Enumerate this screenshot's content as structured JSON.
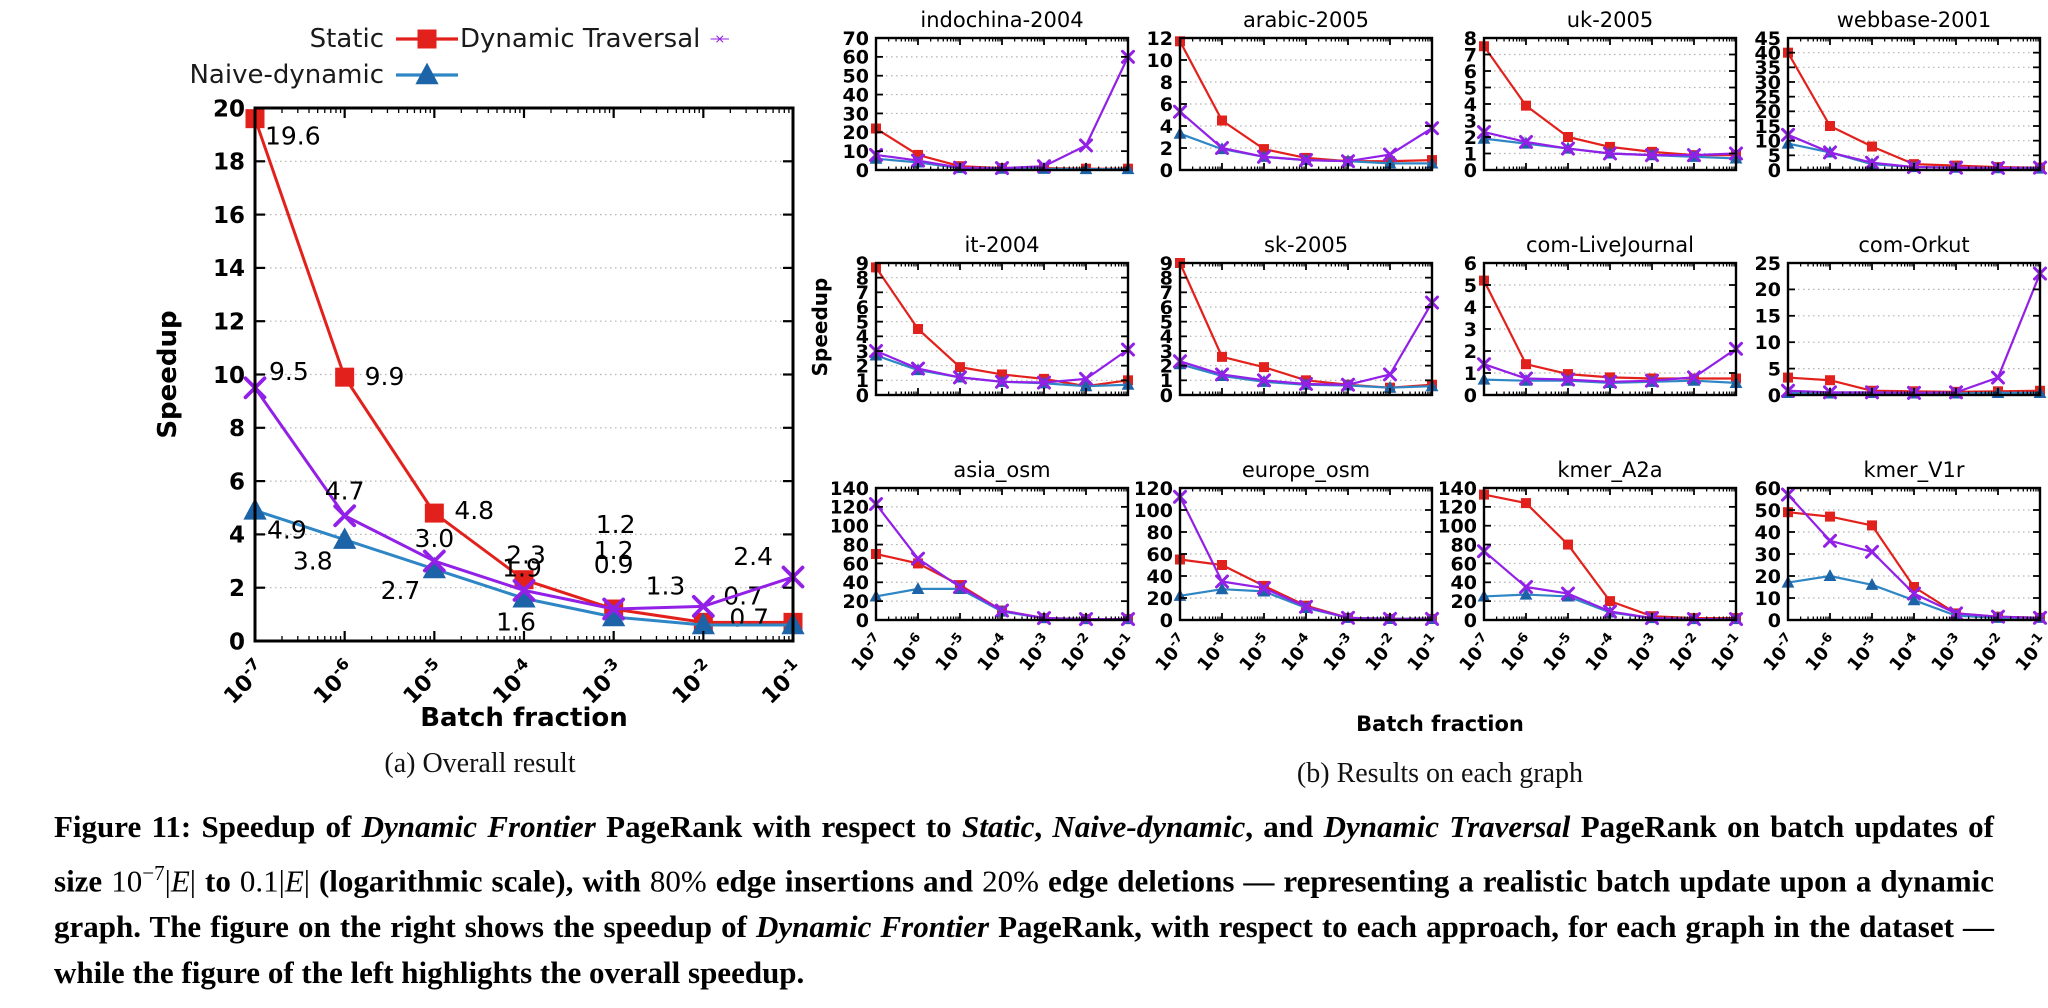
{
  "colors": {
    "grid": "#b3b3b3",
    "axis": "#000000"
  },
  "legend": {
    "items": [
      {
        "id": "static",
        "label": "Static",
        "color": "#e3211c",
        "marker": "square"
      },
      {
        "id": "naive",
        "label": "Naive-dynamic",
        "color": "#2f86c5",
        "marker_color": "#1d63a8",
        "marker": "triangle"
      },
      {
        "id": "traversal",
        "label": "Dynamic Traversal",
        "color": "#9320e6",
        "marker": "x"
      }
    ]
  },
  "chart_common": {
    "categories": [
      "10^-7",
      "10^-6",
      "10^-5",
      "10^-4",
      "10^-3",
      "10^-2",
      "10^-1"
    ],
    "xlabel": "Batch fraction",
    "ylabel": "Speedup"
  },
  "subcaptions": {
    "a": "(a) Overall result",
    "b": "(b) Results on each graph"
  },
  "caption": {
    "segments": [
      {
        "t": "Figure 11: Speedup of "
      },
      {
        "t": "Dynamic Frontier",
        "i": 1
      },
      {
        "t": " PageRank with respect to "
      },
      {
        "t": "Static",
        "i": 1
      },
      {
        "t": ", "
      },
      {
        "t": "Naive-dynamic",
        "i": 1
      },
      {
        "t": ", and "
      },
      {
        "t": "Dynamic Traversal",
        "i": 1
      },
      {
        "t": " PageRank on batch updates of size "
      },
      {
        "t": "10",
        "m": 1
      },
      {
        "t": "−7",
        "m": 1,
        "sup": 1
      },
      {
        "t": "|",
        "m": 1
      },
      {
        "t": "E",
        "m": 1,
        "i": 1
      },
      {
        "t": "|",
        "m": 1
      },
      {
        "t": " to "
      },
      {
        "t": "0.1|",
        "m": 1
      },
      {
        "t": "E",
        "m": 1,
        "i": 1
      },
      {
        "t": "|",
        "m": 1
      },
      {
        "t": " (logarithmic scale), with "
      },
      {
        "t": "80%",
        "m": 1
      },
      {
        "t": " edge insertions and "
      },
      {
        "t": "20%",
        "m": 1
      },
      {
        "t": " edge deletions — representing a realistic batch update upon a dynamic graph. The figure on the right shows the speedup of "
      },
      {
        "t": "Dynamic Frontier",
        "i": 1
      },
      {
        "t": " PageRank, with respect to each approach, for each graph in the dataset — while the figure of the left highlights the overall speedup."
      }
    ]
  },
  "chart_data": [
    {
      "type": "line",
      "id": "overall",
      "title": "",
      "categories": [
        "10^-7",
        "10^-6",
        "10^-5",
        "10^-4",
        "10^-3",
        "10^-2",
        "10^-1"
      ],
      "xlabel": "Batch fraction",
      "ylabel": "Speedup",
      "ylim": [
        0,
        20
      ],
      "ytick_step": 2,
      "grid": true,
      "legend_position": "top",
      "series": [
        {
          "name": "Static",
          "values": [
            19.6,
            9.9,
            4.8,
            2.3,
            1.2,
            0.7,
            0.7
          ],
          "point_labels": [
            {
              "t": "19.6",
              "dx": 10,
              "dy": 26
            },
            {
              "t": "9.9",
              "dx": 20,
              "dy": 8
            },
            {
              "t": "4.8",
              "dx": 20,
              "dy": 6
            },
            {
              "t": "2.3",
              "dx": 2,
              "dy": -16
            },
            {
              "t": "1.2",
              "dx": 2,
              "dy": -76
            },
            {
              "t": "0.7",
              "dx": 26,
              "dy": 4
            },
            {
              "t": "0.7",
              "dx": -30,
              "dy": -18
            }
          ]
        },
        {
          "name": "Naive-dynamic",
          "values": [
            4.9,
            3.8,
            2.7,
            1.6,
            0.9,
            0.6,
            0.6
          ],
          "point_labels": [
            {
              "t": "4.9",
              "dx": 12,
              "dy": 28
            },
            {
              "t": "3.8",
              "dx": -12,
              "dy": 30
            },
            {
              "t": "2.7",
              "dx": -14,
              "dy": 30
            },
            {
              "t": "1.6",
              "dx": -8,
              "dy": 32
            },
            {
              "t": "0.9",
              "dx": 0,
              "dy": -44
            },
            null,
            null
          ]
        },
        {
          "name": "Dynamic Traversal",
          "values": [
            9.5,
            4.7,
            3.0,
            1.9,
            1.2,
            1.3,
            2.4
          ],
          "point_labels": [
            {
              "t": "9.5",
              "dx": 14,
              "dy": -8
            },
            {
              "t": "4.7",
              "dx": 0,
              "dy": -16
            },
            {
              "t": "3.0",
              "dx": 0,
              "dy": -14
            },
            {
              "t": "1.9",
              "dx": -2,
              "dy": -14
            },
            {
              "t": "1.2",
              "dx": 0,
              "dy": -50
            },
            {
              "t": "1.3",
              "dx": -18,
              "dy": -12
            },
            {
              "t": "2.4",
              "dx": -20,
              "dy": -12
            }
          ]
        }
      ]
    },
    {
      "type": "line",
      "title": "indochina-2004",
      "ylim": [
        0,
        70
      ],
      "ytick_step": 10,
      "series": [
        {
          "name": "Static",
          "values": [
            22,
            8,
            2,
            1,
            1,
            0.7,
            0.7
          ]
        },
        {
          "name": "Naive-dynamic",
          "values": [
            6,
            4,
            1,
            0.7,
            0.6,
            0.5,
            0.5
          ]
        },
        {
          "name": "Dynamic Traversal",
          "values": [
            8,
            5,
            1.2,
            1,
            2,
            13,
            60
          ]
        }
      ]
    },
    {
      "type": "line",
      "title": "arabic-2005",
      "ylim": [
        0,
        12
      ],
      "ytick_step": 2,
      "series": [
        {
          "name": "Static",
          "values": [
            11.7,
            4.5,
            1.9,
            1.1,
            0.8,
            0.8,
            0.9
          ]
        },
        {
          "name": "Naive-dynamic",
          "values": [
            3.3,
            1.9,
            1.2,
            0.9,
            0.8,
            0.6,
            0.6
          ]
        },
        {
          "name": "Dynamic Traversal",
          "values": [
            5.3,
            2.0,
            1.2,
            0.9,
            0.8,
            1.4,
            3.8
          ]
        }
      ]
    },
    {
      "type": "line",
      "title": "uk-2005",
      "ylim": [
        0,
        8
      ],
      "ytick_step": 1,
      "series": [
        {
          "name": "Static",
          "values": [
            7.5,
            3.9,
            2.0,
            1.4,
            1.1,
            0.9,
            0.9
          ]
        },
        {
          "name": "Naive-dynamic",
          "values": [
            1.9,
            1.6,
            1.3,
            1.0,
            0.9,
            0.8,
            0.7
          ]
        },
        {
          "name": "Dynamic Traversal",
          "values": [
            2.3,
            1.7,
            1.3,
            1.0,
            0.9,
            0.9,
            1.0
          ]
        }
      ]
    },
    {
      "type": "line",
      "title": "webbase-2001",
      "ylim": [
        0,
        45
      ],
      "ytick_step": 5,
      "series": [
        {
          "name": "Static",
          "values": [
            40,
            15,
            8,
            2,
            1.5,
            1,
            0.8
          ]
        },
        {
          "name": "Naive-dynamic",
          "values": [
            9,
            6,
            2,
            1,
            0.8,
            0.6,
            0.5
          ]
        },
        {
          "name": "Dynamic Traversal",
          "values": [
            12,
            6,
            2.5,
            1,
            0.8,
            0.7,
            0.8
          ]
        }
      ]
    },
    {
      "type": "line",
      "title": "it-2004",
      "ylim": [
        0,
        9
      ],
      "ytick_step": 1,
      "series": [
        {
          "name": "Static",
          "values": [
            8.7,
            4.5,
            1.9,
            1.4,
            1.1,
            0.6,
            1.0
          ]
        },
        {
          "name": "Naive-dynamic",
          "values": [
            2.7,
            1.7,
            1.2,
            0.9,
            0.8,
            0.6,
            0.7
          ]
        },
        {
          "name": "Dynamic Traversal",
          "values": [
            3.0,
            1.8,
            1.2,
            0.9,
            0.85,
            1.1,
            3.1
          ]
        }
      ]
    },
    {
      "type": "line",
      "title": "sk-2005",
      "ylim": [
        0,
        9
      ],
      "ytick_step": 1,
      "series": [
        {
          "name": "Static",
          "values": [
            9.0,
            2.6,
            1.9,
            1.0,
            0.7,
            0.5,
            0.7
          ]
        },
        {
          "name": "Naive-dynamic",
          "values": [
            2.1,
            1.3,
            0.9,
            0.7,
            0.65,
            0.5,
            0.6
          ]
        },
        {
          "name": "Dynamic Traversal",
          "values": [
            2.3,
            1.4,
            1.0,
            0.75,
            0.7,
            1.4,
            6.3
          ]
        }
      ]
    },
    {
      "type": "line",
      "title": "com-LiveJournal",
      "ylim": [
        0,
        6
      ],
      "ytick_step": 1,
      "series": [
        {
          "name": "Static",
          "values": [
            5.2,
            1.4,
            0.95,
            0.8,
            0.75,
            0.75,
            0.75
          ]
        },
        {
          "name": "Naive-dynamic",
          "values": [
            0.7,
            0.65,
            0.65,
            0.55,
            0.6,
            0.65,
            0.55
          ]
        },
        {
          "name": "Dynamic Traversal",
          "values": [
            1.4,
            0.75,
            0.7,
            0.6,
            0.65,
            0.8,
            2.1
          ]
        }
      ]
    },
    {
      "type": "line",
      "title": "com-Orkut",
      "ylim": [
        0,
        25
      ],
      "ytick_step": 5,
      "series": [
        {
          "name": "Static",
          "values": [
            3.3,
            2.8,
            0.8,
            0.7,
            0.6,
            0.7,
            0.8
          ]
        },
        {
          "name": "Naive-dynamic",
          "values": [
            0.4,
            0.3,
            0.4,
            0.3,
            0.3,
            0.4,
            0.4
          ]
        },
        {
          "name": "Dynamic Traversal",
          "values": [
            0.8,
            0.5,
            0.5,
            0.4,
            0.5,
            3.3,
            23
          ]
        }
      ]
    },
    {
      "type": "line",
      "title": "asia_osm",
      "ylim": [
        0,
        140
      ],
      "ytick_step": 20,
      "series": [
        {
          "name": "Static",
          "values": [
            70,
            60,
            37,
            10,
            2,
            1,
            1
          ]
        },
        {
          "name": "Naive-dynamic",
          "values": [
            25,
            33,
            33,
            9,
            2,
            1,
            1
          ]
        },
        {
          "name": "Dynamic Traversal",
          "values": [
            123,
            65,
            35,
            10,
            2,
            1,
            1
          ]
        }
      ]
    },
    {
      "type": "line",
      "title": "europe_osm",
      "ylim": [
        0,
        120
      ],
      "ytick_step": 20,
      "series": [
        {
          "name": "Static",
          "values": [
            55,
            50,
            31,
            13,
            2,
            1,
            1
          ]
        },
        {
          "name": "Naive-dynamic",
          "values": [
            22,
            28,
            26,
            11,
            2,
            1,
            1
          ]
        },
        {
          "name": "Dynamic Traversal",
          "values": [
            112,
            35,
            29,
            12,
            2,
            1,
            1
          ]
        }
      ]
    },
    {
      "type": "line",
      "title": "kmer_A2a",
      "ylim": [
        0,
        140
      ],
      "ytick_step": 20,
      "series": [
        {
          "name": "Static",
          "values": [
            133,
            124,
            80,
            20,
            4,
            2,
            2
          ]
        },
        {
          "name": "Naive-dynamic",
          "values": [
            25,
            27,
            25,
            8,
            2,
            1,
            1
          ]
        },
        {
          "name": "Dynamic Traversal",
          "values": [
            73,
            35,
            28,
            9,
            2,
            1,
            1
          ]
        }
      ]
    },
    {
      "type": "line",
      "title": "kmer_V1r",
      "ylim": [
        0,
        60
      ],
      "ytick_step": 10,
      "series": [
        {
          "name": "Static",
          "values": [
            49,
            47,
            43,
            15,
            3,
            1.5,
            1
          ]
        },
        {
          "name": "Naive-dynamic",
          "values": [
            17,
            20,
            16,
            9,
            2,
            1,
            1
          ]
        },
        {
          "name": "Dynamic Traversal",
          "values": [
            57,
            36,
            31,
            12,
            3,
            1.5,
            1
          ]
        }
      ]
    }
  ]
}
